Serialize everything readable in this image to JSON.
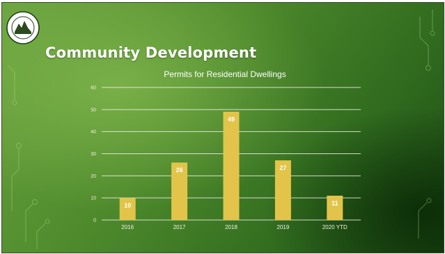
{
  "slide": {
    "title": "Community Development",
    "logo": {
      "icon": "town-seal-logo",
      "text": ""
    }
  },
  "colors": {
    "bar": "#e2c44a",
    "gridline": "#f2f2e6",
    "background": "#4e8a2c"
  },
  "chart_data": {
    "type": "bar",
    "title": "Permits for Residential Dwellings",
    "xlabel": "",
    "ylabel": "",
    "categories": [
      "2016",
      "2017",
      "2018",
      "2019",
      "2020 YTD"
    ],
    "values": [
      10,
      26,
      49,
      27,
      11
    ],
    "data_labels": [
      "10",
      "26",
      "49",
      "27",
      "11"
    ],
    "ylim": [
      0,
      60
    ],
    "yticks": [
      0,
      10,
      20,
      30,
      40,
      50,
      60
    ],
    "grid": true,
    "legend": "none"
  }
}
